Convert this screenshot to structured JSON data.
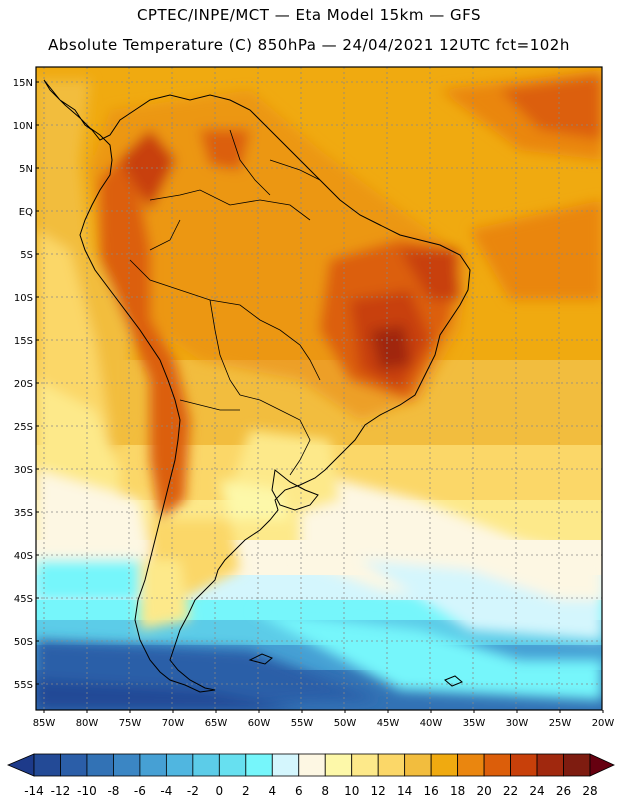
{
  "header": {
    "title_line1": "CPTEC/INPE/MCT —  Eta Model 15km — GFS",
    "title_line2": "Absolute Temperature (C) 850hPa — 24/04/2021 12UTC fct=102h"
  },
  "map": {
    "lat_labels": [
      "15N",
      "10N",
      "5N",
      "EQ",
      "5S",
      "10S",
      "15S",
      "20S",
      "25S",
      "30S",
      "35S",
      "40S",
      "45S",
      "50S",
      "55S"
    ],
    "lon_labels": [
      "85W",
      "80W",
      "75W",
      "70W",
      "65W",
      "60W",
      "55W",
      "50W",
      "45W",
      "40W",
      "35W",
      "30W",
      "25W",
      "20W"
    ],
    "lat_range": [
      16,
      -58
    ],
    "lon_range": [
      -86,
      -20
    ]
  },
  "colorbar": {
    "labels": [
      "-14",
      "-12",
      "-10",
      "-8",
      "-6",
      "-4",
      "-2",
      "0",
      "2",
      "4",
      "6",
      "8",
      "10",
      "12",
      "14",
      "16",
      "18",
      "20",
      "22",
      "24",
      "26",
      "28"
    ],
    "colors": [
      "#1d3a8a",
      "#234a96",
      "#2b5ea8",
      "#3272b5",
      "#3b86c4",
      "#46a0d4",
      "#50b6e0",
      "#5ccce8",
      "#67e0f0",
      "#76f6fb",
      "#d4f6fd",
      "#fdf7e3",
      "#fdf8a9",
      "#fde98a",
      "#fbd768",
      "#f2bd3e",
      "#f0aa10",
      "#ea860f",
      "#dc5e0a",
      "#c8400a",
      "#a0280e",
      "#7e1c10",
      "#660010"
    ]
  }
}
